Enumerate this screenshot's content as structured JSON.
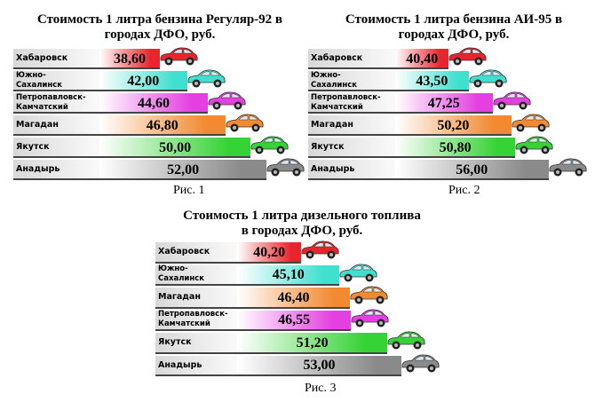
{
  "chart_data": [
    {
      "type": "bar",
      "title": "Стоимость 1 литра бензина Регуляр-92 в\nгородах ДФО, руб.",
      "categories": [
        "Хабаровск",
        "Южно-\nСахалинск",
        "Петропавловск-\nКамчатский",
        "Магадан",
        "Якутск",
        "Анадырь"
      ],
      "values": [
        38.6,
        42,
        44.6,
        46.8,
        50,
        52
      ],
      "value_labels": [
        "38,60",
        "42,00",
        "44,60",
        "46,80",
        "50,00",
        "52,00"
      ],
      "colors": [
        "#e8242c",
        "#3fe0cf",
        "#e43fe0",
        "#f28a32",
        "#36d336",
        "#8a8a8a"
      ],
      "xlim": [
        31,
        57
      ],
      "caption": "Рис. 1"
    },
    {
      "type": "bar",
      "title": "Стоимость 1 литра бензина АИ-95 в\nгородах ДФО, руб.",
      "categories": [
        "Хабаровск",
        "Южно-\nСахалинск",
        "Петропавловск-\nКамчатский",
        "Магадан",
        "Якутск",
        "Анадырь"
      ],
      "values": [
        40.4,
        43.5,
        47.25,
        50.2,
        50.8,
        56
      ],
      "value_labels": [
        "40,40",
        "43,50",
        "47,25",
        "50,20",
        "50,80",
        "56,00"
      ],
      "colors": [
        "#e8242c",
        "#3fe0cf",
        "#e43fe0",
        "#f28a32",
        "#36d336",
        "#8a8a8a"
      ],
      "xlim": [
        32,
        64
      ],
      "caption": "Рис. 2"
    },
    {
      "type": "bar",
      "title": "Стоимость 1 литра дизельного топлива\nв городах ДФО, руб.",
      "categories": [
        "Хабаровск",
        "Южно-\nСахалинск",
        "Магадан",
        "Петропавловск-\nКамчатский",
        "Якутск",
        "Анадырь"
      ],
      "values": [
        40.2,
        45.1,
        46.4,
        46.55,
        51.2,
        53
      ],
      "value_labels": [
        "40,20",
        "45,10",
        "46,40",
        "46,55",
        "51,20",
        "53,00"
      ],
      "colors": [
        "#e8242c",
        "#3fe0cf",
        "#f28a32",
        "#e43fe0",
        "#36d336",
        "#8a8a8a"
      ],
      "xlim": [
        32,
        59
      ],
      "caption": "Рис. 3"
    }
  ]
}
